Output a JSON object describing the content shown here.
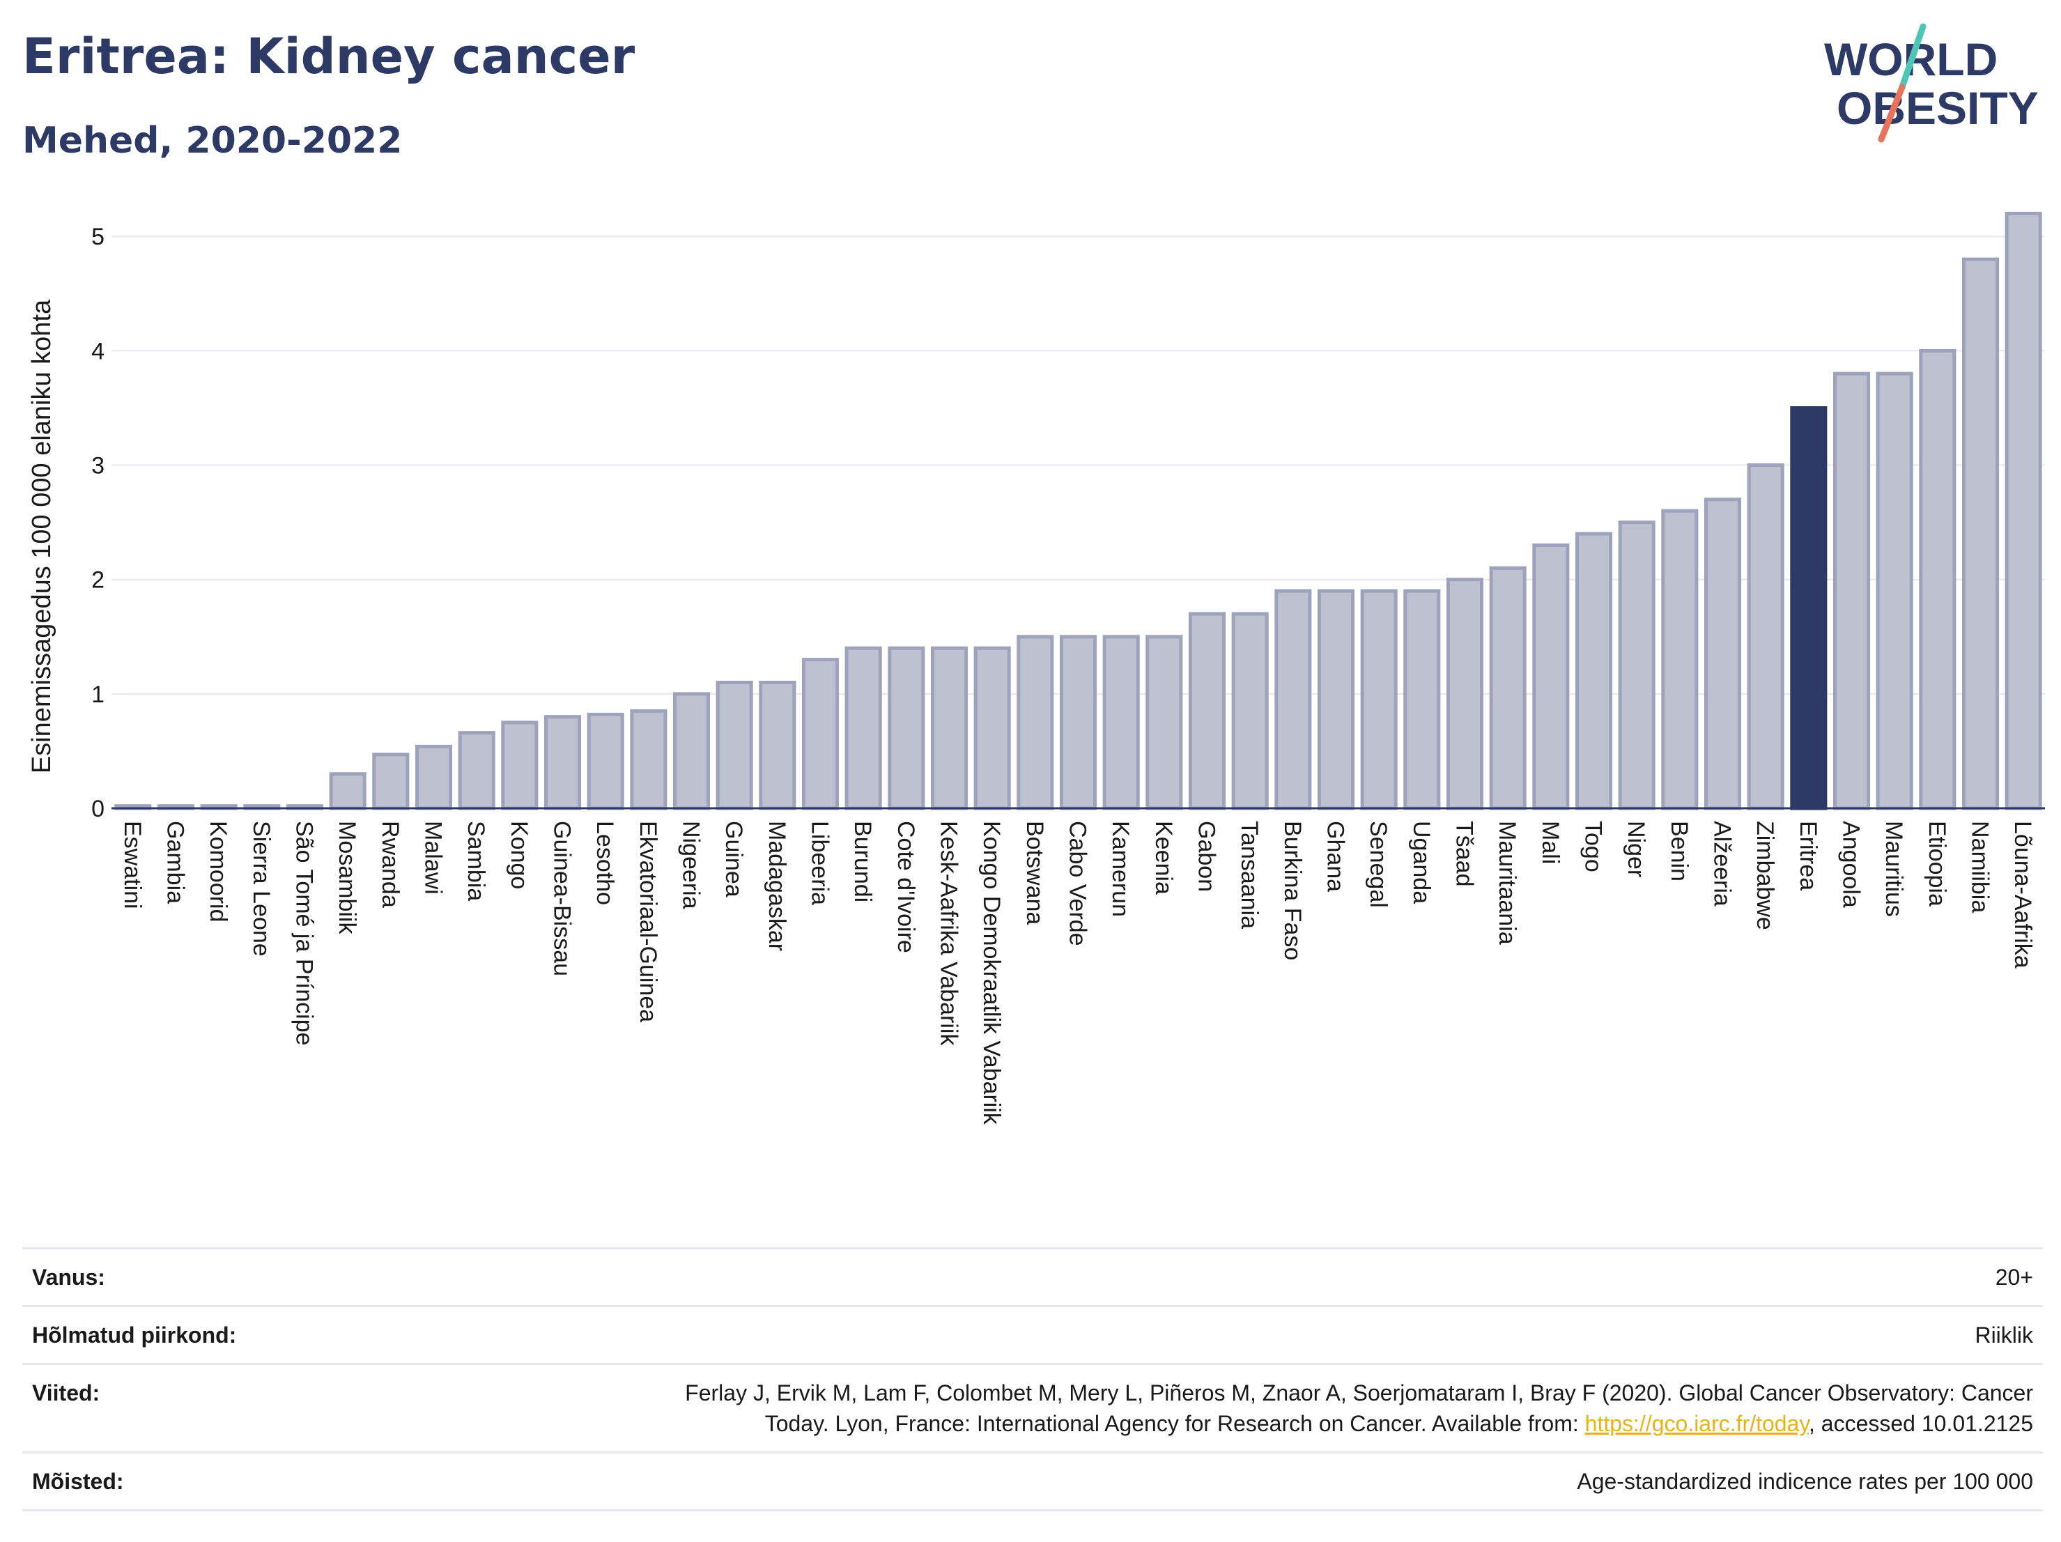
{
  "header": {
    "title": "Eritrea: Kidney cancer",
    "subtitle": "Mehed, 2020-2022"
  },
  "logo": {
    "line1": "WORLD",
    "line2": "OBESITY",
    "slash_colors": [
      "#4dc6b5",
      "#e8735a"
    ]
  },
  "chart_data": {
    "type": "bar",
    "ylabel": "Esinemissagedus 100 000 elaniku kohta",
    "ylim": [
      0,
      5.3
    ],
    "yticks": [
      0,
      1,
      2,
      3,
      4,
      5
    ],
    "grid": true,
    "highlight": "Eritrea",
    "colors": {
      "bar": "#bdc1d0",
      "bar_border": "#9ea3bb",
      "highlight": "#2d3a66"
    },
    "categories": [
      "Eswatini",
      "Gambia",
      "Komoorid",
      "Sierra Leone",
      "São Tomé ja Príncipe",
      "Mosambiik",
      "Rwanda",
      "Malawi",
      "Sambia",
      "Kongo",
      "Guinea-Bissau",
      "Lesotho",
      "Ekvatoriaal-Guinea",
      "Nigeeria",
      "Guinea",
      "Madagaskar",
      "Libeeria",
      "Burundi",
      "Cote d'Ivoire",
      "Kesk-Aafrika Vabariik",
      "Kongo Demokraatlik Vabariik",
      "Botswana",
      "Cabo Verde",
      "Kamerun",
      "Keenia",
      "Gabon",
      "Tansaania",
      "Burkina Faso",
      "Ghana",
      "Senegal",
      "Uganda",
      "Tšaad",
      "Mauritaania",
      "Mali",
      "Togo",
      "Niger",
      "Benin",
      "Alžeeria",
      "Zimbabwe",
      "Eritrea",
      "Angoola",
      "Mauritius",
      "Etioopia",
      "Namiibia",
      "Lõuna-Aafrika"
    ],
    "values": [
      0.02,
      0.02,
      0.02,
      0.02,
      0.02,
      0.3,
      0.47,
      0.54,
      0.66,
      0.75,
      0.8,
      0.82,
      0.85,
      1.0,
      1.1,
      1.1,
      1.3,
      1.4,
      1.4,
      1.4,
      1.4,
      1.5,
      1.5,
      1.5,
      1.5,
      1.7,
      1.7,
      1.9,
      1.9,
      1.9,
      1.9,
      2.0,
      2.1,
      2.3,
      2.4,
      2.5,
      2.6,
      2.7,
      3.0,
      3.5,
      3.8,
      3.8,
      4.0,
      4.8,
      5.2
    ]
  },
  "info": [
    {
      "label": "Vanus:",
      "value": "20+"
    },
    {
      "label": "Hõlmatud piirkond:",
      "value": "Riiklik"
    },
    {
      "label": "Viited:",
      "value_line1": "Ferlay J, Ervik M, Lam F, Colombet M, Mery L, Piñeros M, Znaor A, Soerjomataram I, Bray F (2020). Global Cancer Observatory: Cancer",
      "value_pre": "Today. Lyon, France: International Agency for Research on Cancer. Available from: ",
      "link": "https://gco.iarc.fr/today",
      "value_post": ", accessed 10.01.2125"
    },
    {
      "label": "Mõisted:",
      "value": "Age-standardized indicence rates per 100 000"
    }
  ]
}
